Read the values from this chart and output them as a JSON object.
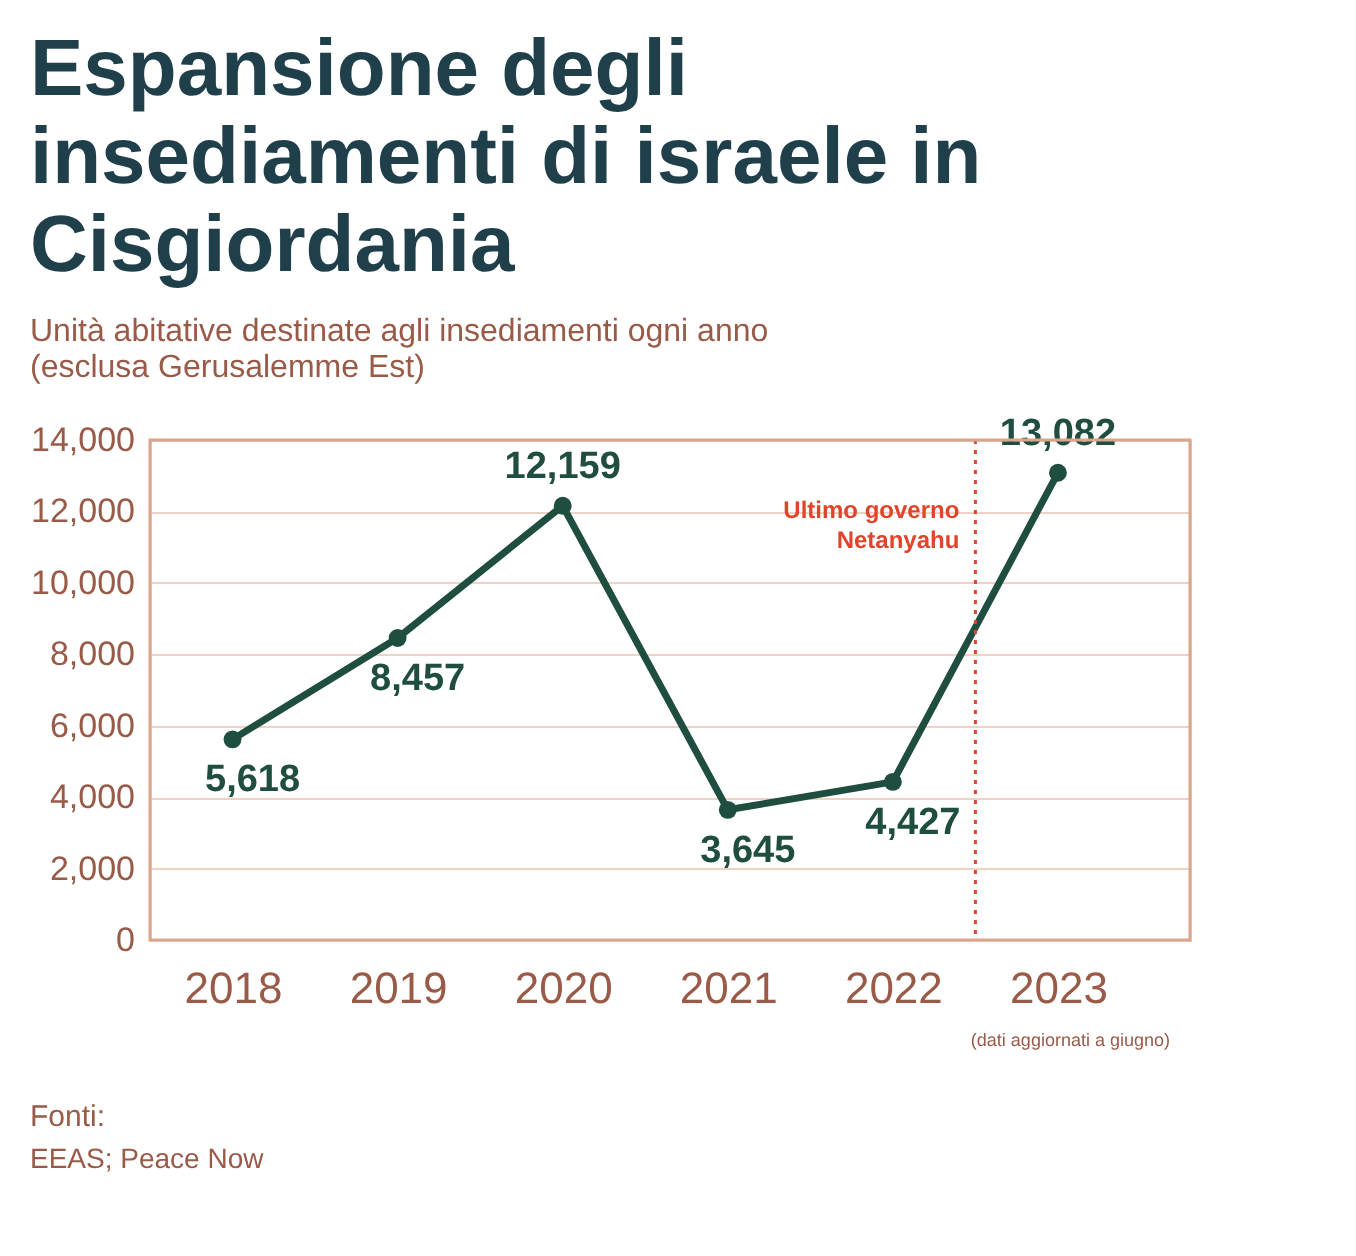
{
  "chart_data": {
    "type": "line",
    "title": [
      "Espansione degli",
      "insediamenti di israele in",
      "Cisgiordania"
    ],
    "subtitle": [
      "Unità abitative destinate agli insediamenti ogni anno",
      "(esclusa Gerusalemme Est)"
    ],
    "x": [
      2018,
      2019,
      2020,
      2021,
      2022,
      2023
    ],
    "series": [
      {
        "color": "#1f4d40",
        "values": [
          5618,
          8457,
          12159,
          3645,
          4427,
          13082
        ],
        "value_labels": [
          "5,618",
          "8,457",
          "12,159",
          "3,645",
          "4,427",
          "13,082"
        ]
      }
    ],
    "xlim": [
      2017.5,
      2023.8
    ],
    "xticks": [
      2018,
      2019,
      2020,
      2021,
      2022,
      2023
    ],
    "ylim": [
      0,
      14000
    ],
    "yticks": [
      0,
      {
        "value": 2000,
        "label": "2,000"
      },
      {
        "value": 4000,
        "label": "4,000"
      },
      {
        "value": 6000,
        "label": "6,000"
      },
      {
        "value": 8000,
        "label": "8,000"
      },
      {
        "value": 10000,
        "label": "10,000"
      },
      {
        "value": 12000,
        "label": "12,000"
      },
      {
        "value": 14000,
        "label": "14,000"
      }
    ],
    "grid": "y",
    "marker": "circle",
    "line_style": "solid",
    "ref_lines": [
      {
        "axis": "x",
        "value": 2022.5,
        "label": [
          "Ultimo governo",
          "Netanyahu"
        ],
        "color": "#e0442a",
        "line_style": "dotted"
      }
    ],
    "annotations": [
      "(dati aggiornati a giugno)",
      "Fonti:",
      "EEAS; Peace Now"
    ]
  }
}
